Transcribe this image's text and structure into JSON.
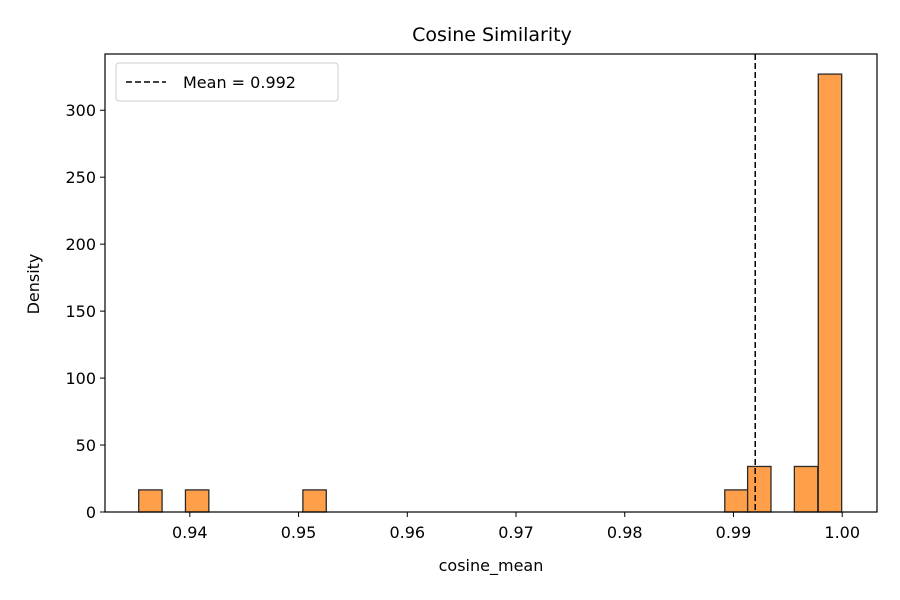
{
  "chart_data": {
    "type": "bar",
    "title": "Cosine Similarity",
    "xlabel": "cosine_mean",
    "ylabel": "Density",
    "xlim": [
      0.9322,
      1.0032
    ],
    "ylim": [
      0,
      342
    ],
    "xticks": [
      0.94,
      0.95,
      0.96,
      0.97,
      0.98,
      0.99,
      1.0
    ],
    "xtick_labels": [
      "0.94",
      "0.95",
      "0.96",
      "0.97",
      "0.98",
      "0.99",
      "1.00"
    ],
    "yticks": [
      0,
      50,
      100,
      150,
      200,
      250,
      300
    ],
    "ytick_labels": [
      "0",
      "50",
      "100",
      "150",
      "200",
      "250",
      "300"
    ],
    "bin_width": 0.00215,
    "bins": [
      {
        "start": 0.9353,
        "density": 16.5
      },
      {
        "start": 0.9396,
        "density": 16.5
      },
      {
        "start": 0.9504,
        "density": 16.5
      },
      {
        "start": 0.9892,
        "density": 16.5
      },
      {
        "start": 0.9913,
        "density": 34
      },
      {
        "start": 0.9956,
        "density": 34
      },
      {
        "start": 0.9978,
        "density": 327
      }
    ],
    "bar_color": "#ff9f4a",
    "bar_edge_color": "#2a2a2a",
    "mean_line": {
      "value": 0.992,
      "label": "Mean = 0.992",
      "style": "dashed",
      "color": "#000000"
    },
    "legend_placement": "top-left",
    "grid": false
  }
}
